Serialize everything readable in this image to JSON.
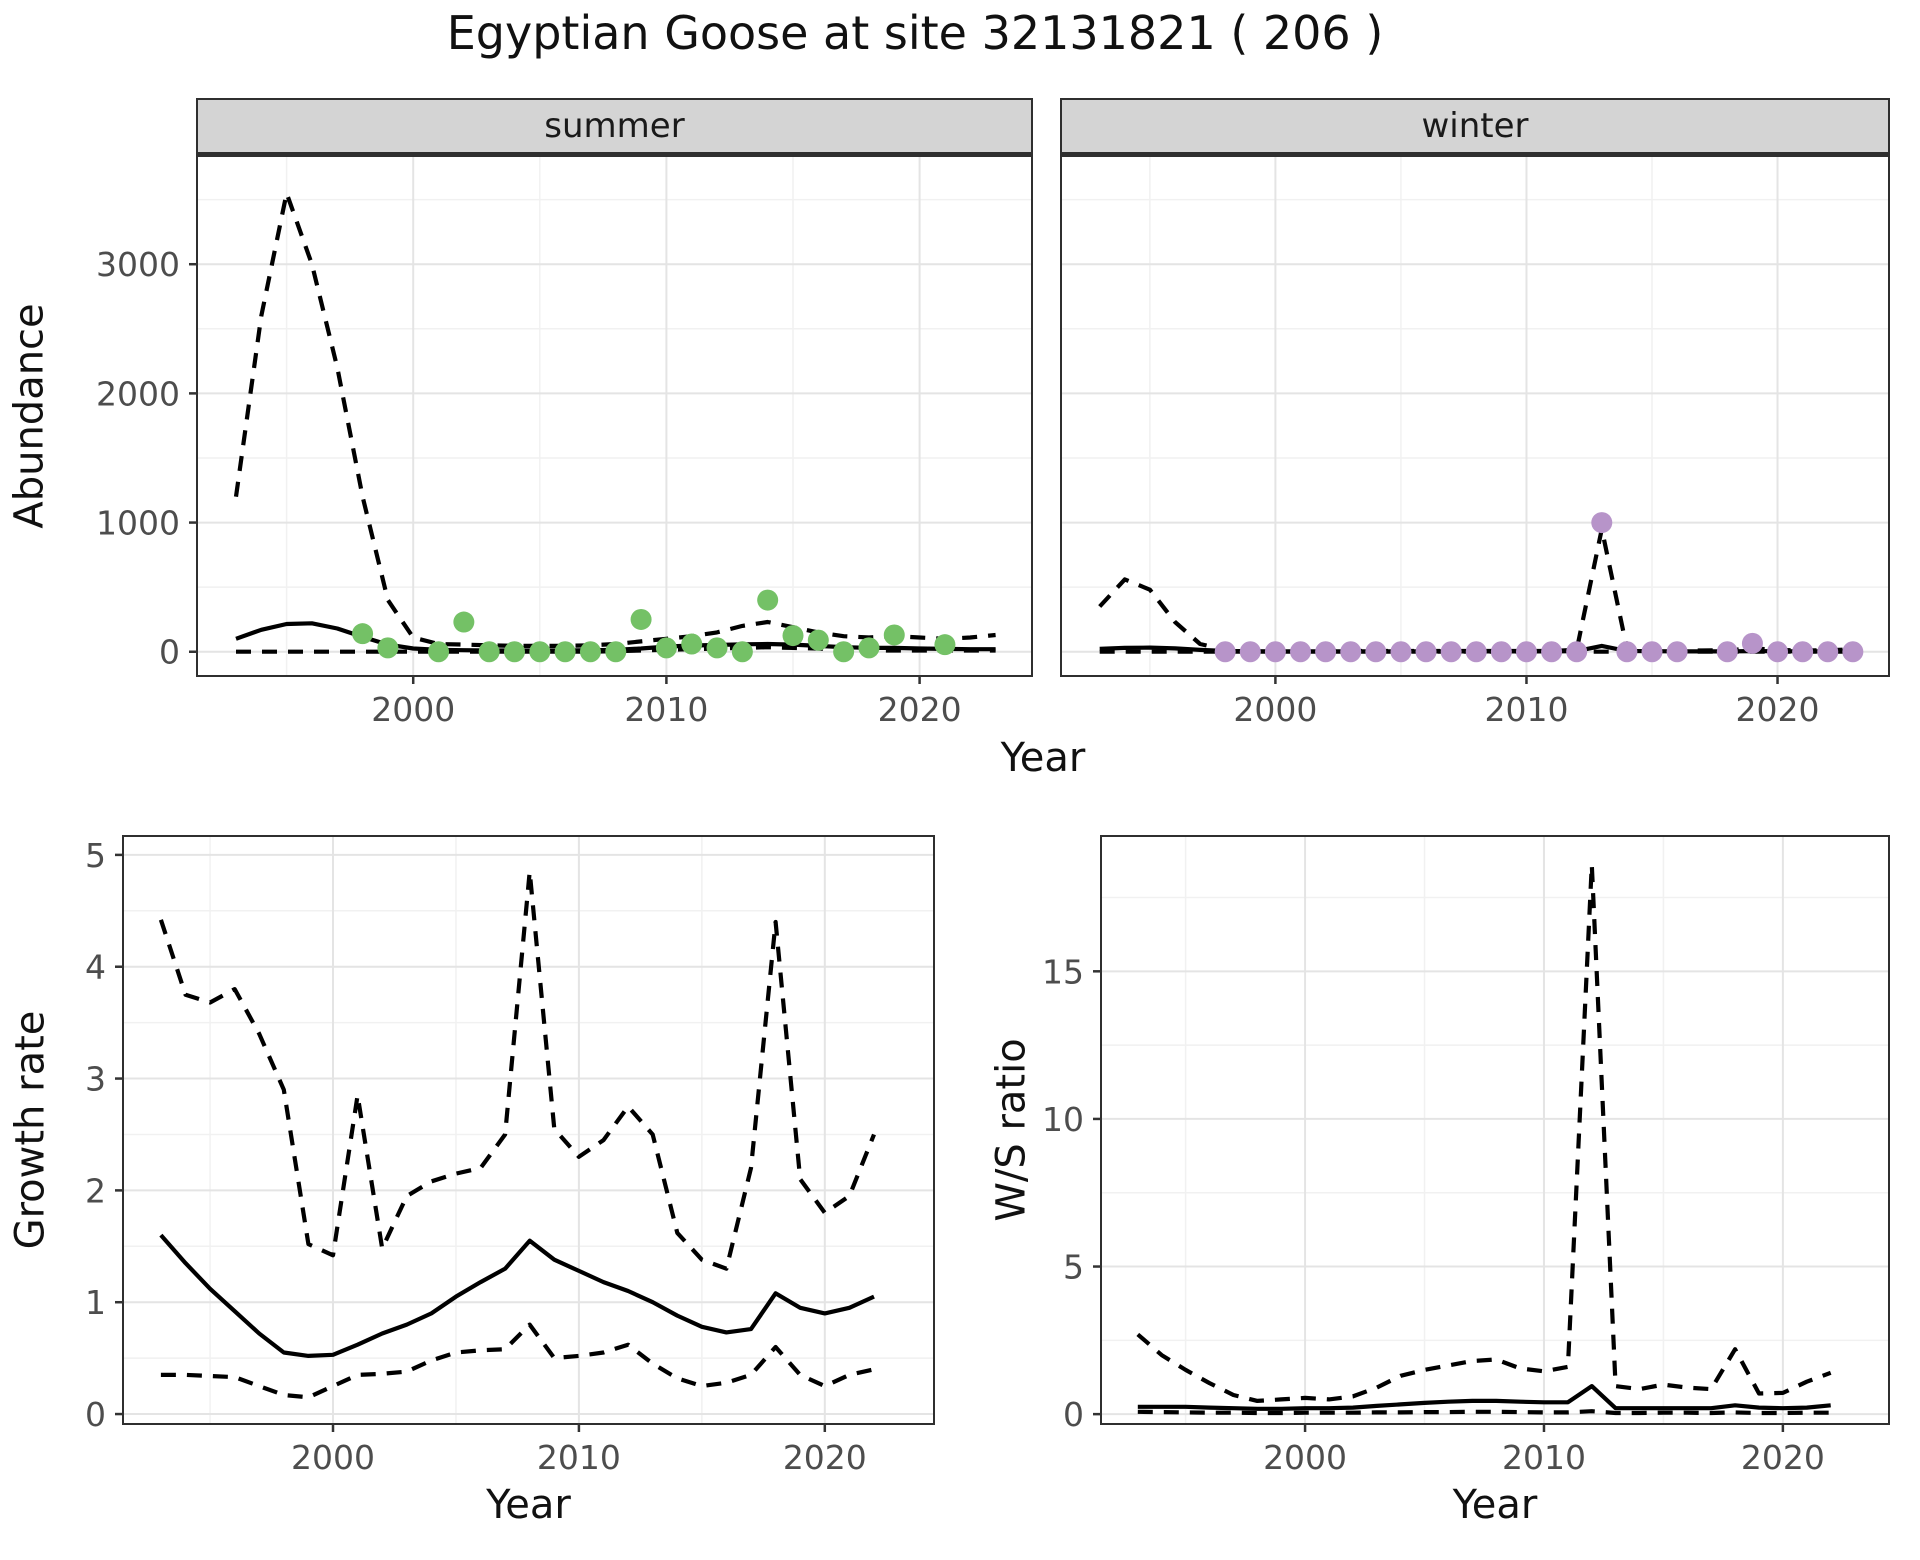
{
  "title": "Egyptian Goose at site 32131821 ( 206 )",
  "facets": {
    "summer_label": "summer",
    "winter_label": "winter"
  },
  "axes": {
    "abundance_label": "Abundance",
    "growth_label": "Growth rate",
    "ws_label": "W/S ratio",
    "year_label_top": "Year",
    "year_label_bottom_left": "Year",
    "year_label_bottom_right": "Year"
  },
  "colors": {
    "line": "#000000",
    "summer_point": "#74c166",
    "winter_point": "#b794c9",
    "grid_major": "#e4e4e4",
    "grid_minor": "#f1f1f1",
    "axis_text": "#4d4d4d",
    "tick_mark": "#333333",
    "strip_bg": "#d4d4d4"
  },
  "chart_data": [
    {
      "type": "line",
      "panel": "summer",
      "facet": "summer",
      "ylabel": "Abundance",
      "xlabel": "Year",
      "xlim": [
        1991.5,
        2024.4
      ],
      "ylim": [
        -180,
        3830
      ],
      "x_ticks": [
        2000,
        2010,
        2020
      ],
      "x_minor": [
        1995,
        2005,
        2015
      ],
      "y_ticks": [
        0,
        1000,
        2000,
        3000
      ],
      "y_minor": [
        500,
        1500,
        2500,
        3500
      ],
      "show_x_labels": true,
      "show_y_labels": true,
      "years": [
        1993,
        1994,
        1995,
        1996,
        1997,
        1998,
        1999,
        2000,
        2001,
        2002,
        2003,
        2004,
        2005,
        2006,
        2007,
        2008,
        2009,
        2010,
        2011,
        2012,
        2013,
        2014,
        2015,
        2016,
        2017,
        2018,
        2019,
        2020,
        2021,
        2022,
        2023
      ],
      "series": [
        {
          "name": "mean",
          "style": "solid",
          "values": [
            100,
            170,
            215,
            220,
            180,
            115,
            55,
            25,
            15,
            12,
            10,
            10,
            10,
            10,
            12,
            15,
            25,
            40,
            48,
            52,
            58,
            60,
            55,
            45,
            35,
            30,
            30,
            25,
            22,
            20,
            20
          ]
        },
        {
          "name": "upper_ci",
          "style": "dashed",
          "values": [
            1200,
            2600,
            3550,
            3000,
            2200,
            1200,
            400,
            110,
            60,
            55,
            50,
            45,
            45,
            45,
            50,
            60,
            80,
            100,
            120,
            150,
            200,
            230,
            190,
            150,
            120,
            110,
            120,
            110,
            100,
            110,
            130
          ]
        },
        {
          "name": "lower_ci",
          "style": "dashed",
          "values": [
            0,
            0,
            0,
            0,
            0,
            0,
            0,
            0,
            0,
            0,
            0,
            0,
            0,
            0,
            0,
            5,
            10,
            15,
            20,
            25,
            30,
            35,
            30,
            25,
            15,
            10,
            10,
            10,
            10,
            10,
            10
          ]
        }
      ],
      "points": {
        "name": "observed-counts-summer",
        "color": "#74c166",
        "years": [
          1998,
          1999,
          2001,
          2002,
          2003,
          2004,
          2005,
          2006,
          2007,
          2008,
          2009,
          2010,
          2011,
          2012,
          2013,
          2014,
          2015,
          2016,
          2017,
          2018,
          2019,
          2021
        ],
        "values": [
          140,
          30,
          0,
          230,
          0,
          0,
          0,
          0,
          0,
          0,
          250,
          30,
          60,
          30,
          0,
          400,
          125,
          90,
          0,
          30,
          130,
          55
        ]
      }
    },
    {
      "type": "line",
      "panel": "winter",
      "facet": "winter",
      "ylabel": "Abundance",
      "xlabel": "Year",
      "xlim": [
        1991.5,
        2024.4
      ],
      "ylim": [
        -180,
        3830
      ],
      "x_ticks": [
        2000,
        2010,
        2020
      ],
      "x_minor": [
        1995,
        2005,
        2015
      ],
      "y_ticks": [
        0,
        1000,
        2000,
        3000
      ],
      "y_minor": [
        500,
        1500,
        2500,
        3500
      ],
      "show_x_labels": true,
      "show_y_labels": false,
      "years": [
        1993,
        1994,
        1995,
        1996,
        1997,
        1998,
        1999,
        2000,
        2001,
        2002,
        2003,
        2004,
        2005,
        2006,
        2007,
        2008,
        2009,
        2010,
        2011,
        2012,
        2013,
        2014,
        2015,
        2016,
        2017,
        2018,
        2019,
        2020,
        2021,
        2022,
        2023
      ],
      "series": [
        {
          "name": "mean",
          "style": "solid",
          "values": [
            22,
            30,
            32,
            26,
            14,
            6,
            4,
            3,
            3,
            3,
            3,
            3,
            3,
            3,
            3,
            3,
            3,
            3,
            3,
            5,
            45,
            6,
            4,
            3,
            3,
            3,
            5,
            4,
            3,
            3,
            4
          ]
        },
        {
          "name": "upper_ci",
          "style": "dashed",
          "values": [
            350,
            560,
            480,
            230,
            60,
            15,
            8,
            6,
            6,
            6,
            6,
            6,
            6,
            6,
            6,
            6,
            6,
            6,
            6,
            15,
            950,
            25,
            12,
            10,
            10,
            12,
            25,
            15,
            10,
            12,
            18
          ]
        },
        {
          "name": "lower_ci",
          "style": "dashed",
          "values": [
            0,
            0,
            0,
            0,
            0,
            0,
            0,
            0,
            0,
            0,
            0,
            0,
            0,
            0,
            0,
            0,
            0,
            0,
            0,
            0,
            0,
            0,
            0,
            0,
            0,
            0,
            0,
            0,
            0,
            0,
            0
          ]
        }
      ],
      "points": {
        "name": "observed-counts-winter",
        "color": "#b794c9",
        "years": [
          1998,
          1999,
          2000,
          2001,
          2002,
          2003,
          2004,
          2005,
          2006,
          2007,
          2008,
          2009,
          2010,
          2011,
          2012,
          2013,
          2014,
          2015,
          2016,
          2018,
          2019,
          2020,
          2021,
          2022,
          2023
        ],
        "values": [
          0,
          0,
          0,
          0,
          0,
          0,
          0,
          0,
          0,
          0,
          0,
          0,
          0,
          0,
          0,
          1000,
          0,
          0,
          0,
          0,
          65,
          0,
          0,
          0,
          0
        ]
      }
    },
    {
      "type": "line",
      "panel": "growth",
      "ylabel": "Growth rate",
      "xlabel": "Year",
      "xlim": [
        1991.5,
        2024.4
      ],
      "ylim": [
        -0.08,
        5.16
      ],
      "x_ticks": [
        2000,
        2010,
        2020
      ],
      "x_minor": [
        1995,
        2005,
        2015
      ],
      "y_ticks": [
        0,
        1,
        2,
        3,
        4,
        5
      ],
      "y_minor": [
        0.5,
        1.5,
        2.5,
        3.5,
        4.5
      ],
      "show_x_labels": true,
      "show_y_labels": true,
      "years": [
        1993,
        1994,
        1995,
        1996,
        1997,
        1998,
        1999,
        2000,
        2001,
        2002,
        2003,
        2004,
        2005,
        2006,
        2007,
        2008,
        2009,
        2010,
        2011,
        2012,
        2013,
        2014,
        2015,
        2016,
        2017,
        2018,
        2019,
        2020,
        2021,
        2022
      ],
      "series": [
        {
          "name": "mean",
          "style": "solid",
          "values": [
            1.6,
            1.35,
            1.12,
            0.92,
            0.72,
            0.55,
            0.52,
            0.53,
            0.62,
            0.72,
            0.8,
            0.9,
            1.05,
            1.18,
            1.3,
            1.55,
            1.38,
            1.28,
            1.18,
            1.1,
            1.0,
            0.88,
            0.78,
            0.73,
            0.76,
            1.08,
            0.95,
            0.9,
            0.95,
            1.05
          ]
        },
        {
          "name": "upper_ci",
          "style": "dashed",
          "values": [
            4.42,
            3.75,
            3.68,
            3.8,
            3.4,
            2.9,
            1.52,
            1.42,
            2.85,
            1.48,
            1.95,
            2.08,
            2.15,
            2.2,
            2.5,
            4.85,
            2.55,
            2.3,
            2.45,
            2.75,
            2.5,
            1.62,
            1.38,
            1.3,
            2.2,
            4.4,
            2.1,
            1.8,
            1.95,
            2.5
          ]
        },
        {
          "name": "lower_ci",
          "style": "dashed",
          "values": [
            0.35,
            0.35,
            0.34,
            0.33,
            0.25,
            0.17,
            0.15,
            0.25,
            0.35,
            0.36,
            0.38,
            0.48,
            0.55,
            0.57,
            0.58,
            0.8,
            0.5,
            0.52,
            0.55,
            0.62,
            0.45,
            0.32,
            0.25,
            0.28,
            0.35,
            0.6,
            0.35,
            0.25,
            0.35,
            0.4
          ]
        }
      ]
    },
    {
      "type": "line",
      "panel": "ws",
      "ylabel": "W/S ratio",
      "xlabel": "Year",
      "xlim": [
        1991.5,
        2024.4
      ],
      "ylim": [
        -0.3,
        19.55
      ],
      "x_ticks": [
        2000,
        2010,
        2020
      ],
      "x_minor": [
        1995,
        2005,
        2015
      ],
      "y_ticks": [
        0,
        5,
        10,
        15
      ],
      "y_minor": [
        2.5,
        7.5,
        12.5,
        17.5
      ],
      "show_x_labels": true,
      "show_y_labels": true,
      "years": [
        1993,
        1994,
        1995,
        1996,
        1997,
        1998,
        1999,
        2000,
        2001,
        2002,
        2003,
        2004,
        2005,
        2006,
        2007,
        2008,
        2009,
        2010,
        2011,
        2012,
        2013,
        2014,
        2015,
        2016,
        2017,
        2018,
        2019,
        2020,
        2021,
        2022
      ],
      "series": [
        {
          "name": "mean",
          "style": "solid",
          "values": [
            0.25,
            0.25,
            0.25,
            0.22,
            0.2,
            0.18,
            0.18,
            0.2,
            0.2,
            0.22,
            0.28,
            0.33,
            0.38,
            0.42,
            0.45,
            0.45,
            0.42,
            0.4,
            0.4,
            0.95,
            0.2,
            0.2,
            0.2,
            0.2,
            0.2,
            0.3,
            0.22,
            0.2,
            0.22,
            0.3
          ]
        },
        {
          "name": "upper_ci",
          "style": "dashed",
          "values": [
            2.7,
            2.0,
            1.5,
            1.05,
            0.65,
            0.45,
            0.5,
            0.55,
            0.5,
            0.6,
            0.9,
            1.3,
            1.5,
            1.65,
            1.8,
            1.85,
            1.55,
            1.45,
            1.6,
            18.6,
            0.95,
            0.85,
            1.0,
            0.9,
            0.85,
            2.2,
            0.7,
            0.72,
            1.1,
            1.4
          ]
        },
        {
          "name": "lower_ci",
          "style": "dashed",
          "values": [
            0.08,
            0.07,
            0.06,
            0.05,
            0.05,
            0.04,
            0.04,
            0.05,
            0.05,
            0.05,
            0.06,
            0.06,
            0.07,
            0.07,
            0.08,
            0.08,
            0.07,
            0.06,
            0.06,
            0.1,
            0.04,
            0.04,
            0.05,
            0.05,
            0.04,
            0.06,
            0.04,
            0.04,
            0.05,
            0.05
          ]
        }
      ]
    }
  ]
}
